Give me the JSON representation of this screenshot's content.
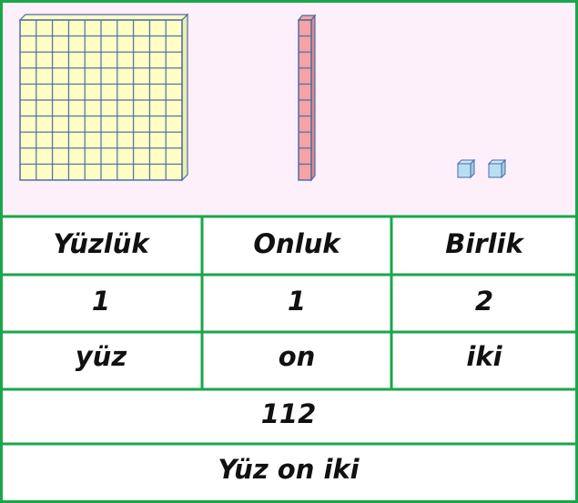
{
  "table": {
    "header": [
      "Yüzlük",
      "Onluk",
      "Birlik"
    ],
    "rows": [
      [
        "1",
        "1",
        "2"
      ],
      [
        "yüz",
        "on",
        "iki"
      ]
    ],
    "number": "112",
    "words": "Yüz on iki"
  }
}
